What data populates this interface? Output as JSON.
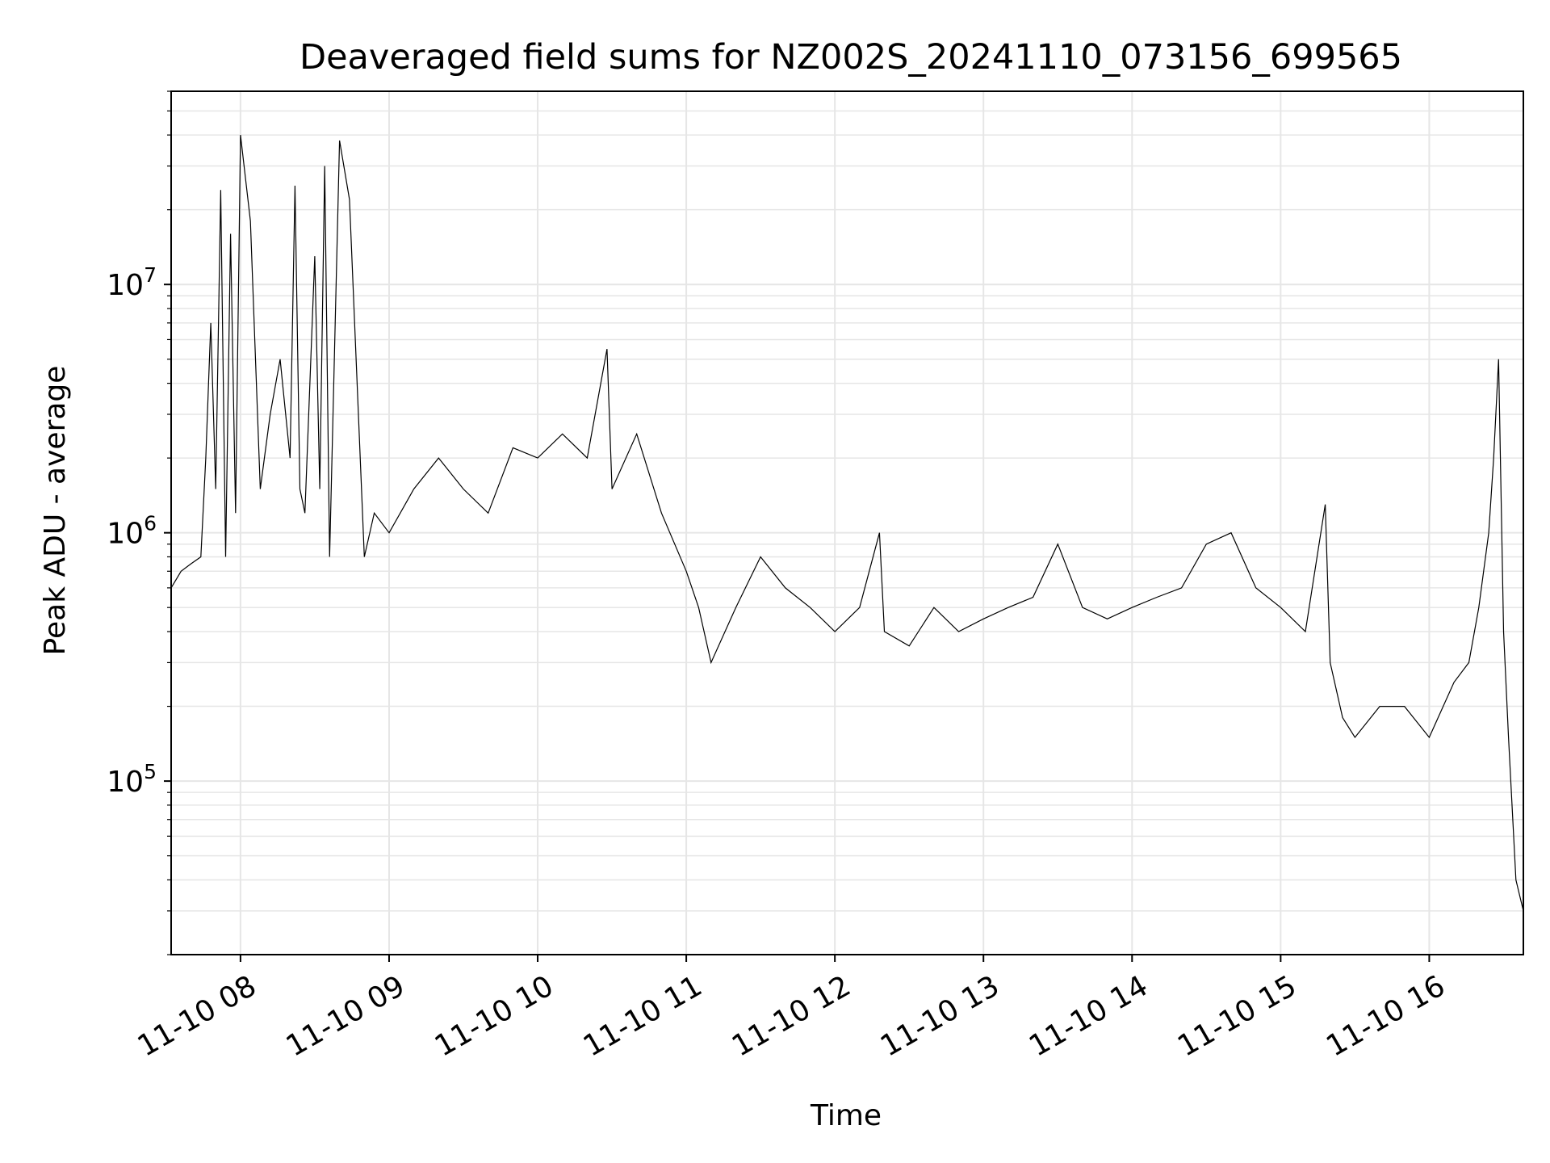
{
  "chart_data": {
    "type": "line",
    "title": "Deaveraged field sums for NZ002S_20241110_073156_699565",
    "xlabel": "Time",
    "ylabel": "Peak ADU - average",
    "yscale": "log",
    "xlim": [
      "2024-11-10T07:32:00",
      "2024-11-10T16:38:00"
    ],
    "ylim": [
      20000,
      60000000
    ],
    "grid": true,
    "line_color": "#000000",
    "grid_color": "#e6e6e6",
    "x_ticks": [
      {
        "value": "2024-11-10T08:00:00",
        "label": "11-10 08"
      },
      {
        "value": "2024-11-10T09:00:00",
        "label": "11-10 09"
      },
      {
        "value": "2024-11-10T10:00:00",
        "label": "11-10 10"
      },
      {
        "value": "2024-11-10T11:00:00",
        "label": "11-10 11"
      },
      {
        "value": "2024-11-10T12:00:00",
        "label": "11-10 12"
      },
      {
        "value": "2024-11-10T13:00:00",
        "label": "11-10 13"
      },
      {
        "value": "2024-11-10T14:00:00",
        "label": "11-10 14"
      },
      {
        "value": "2024-11-10T15:00:00",
        "label": "11-10 15"
      },
      {
        "value": "2024-11-10T16:00:00",
        "label": "11-10 16"
      }
    ],
    "y_ticks": [
      {
        "value": 100000,
        "base": "10",
        "exp": "5"
      },
      {
        "value": 1000000,
        "base": "10",
        "exp": "6"
      },
      {
        "value": 10000000,
        "base": "10",
        "exp": "7"
      }
    ],
    "series": [
      {
        "x": [
          "2024-11-10T07:32:00",
          "2024-11-10T07:36:00",
          "2024-11-10T07:40:00",
          "2024-11-10T07:44:00",
          "2024-11-10T07:46:00",
          "2024-11-10T07:48:00",
          "2024-11-10T07:50:00",
          "2024-11-10T07:52:00",
          "2024-11-10T07:54:00",
          "2024-11-10T07:56:00",
          "2024-11-10T07:58:00",
          "2024-11-10T08:00:00",
          "2024-11-10T08:04:00",
          "2024-11-10T08:08:00",
          "2024-11-10T08:12:00",
          "2024-11-10T08:16:00",
          "2024-11-10T08:20:00",
          "2024-11-10T08:22:00",
          "2024-11-10T08:24:00",
          "2024-11-10T08:26:00",
          "2024-11-10T08:30:00",
          "2024-11-10T08:32:00",
          "2024-11-10T08:34:00",
          "2024-11-10T08:36:00",
          "2024-11-10T08:40:00",
          "2024-11-10T08:44:00",
          "2024-11-10T08:50:00",
          "2024-11-10T08:54:00",
          "2024-11-10T09:00:00",
          "2024-11-10T09:10:00",
          "2024-11-10T09:20:00",
          "2024-11-10T09:30:00",
          "2024-11-10T09:40:00",
          "2024-11-10T09:50:00",
          "2024-11-10T10:00:00",
          "2024-11-10T10:10:00",
          "2024-11-10T10:20:00",
          "2024-11-10T10:28:00",
          "2024-11-10T10:30:00",
          "2024-11-10T10:40:00",
          "2024-11-10T10:50:00",
          "2024-11-10T11:00:00",
          "2024-11-10T11:05:00",
          "2024-11-10T11:10:00",
          "2024-11-10T11:20:00",
          "2024-11-10T11:30:00",
          "2024-11-10T11:40:00",
          "2024-11-10T11:50:00",
          "2024-11-10T12:00:00",
          "2024-11-10T12:10:00",
          "2024-11-10T12:18:00",
          "2024-11-10T12:20:00",
          "2024-11-10T12:30:00",
          "2024-11-10T12:40:00",
          "2024-11-10T12:50:00",
          "2024-11-10T13:00:00",
          "2024-11-10T13:10:00",
          "2024-11-10T13:20:00",
          "2024-11-10T13:30:00",
          "2024-11-10T13:40:00",
          "2024-11-10T13:50:00",
          "2024-11-10T14:00:00",
          "2024-11-10T14:10:00",
          "2024-11-10T14:20:00",
          "2024-11-10T14:30:00",
          "2024-11-10T14:40:00",
          "2024-11-10T14:50:00",
          "2024-11-10T15:00:00",
          "2024-11-10T15:10:00",
          "2024-11-10T15:18:00",
          "2024-11-10T15:20:00",
          "2024-11-10T15:25:00",
          "2024-11-10T15:30:00",
          "2024-11-10T15:40:00",
          "2024-11-10T15:50:00",
          "2024-11-10T16:00:00",
          "2024-11-10T16:10:00",
          "2024-11-10T16:16:00",
          "2024-11-10T16:20:00",
          "2024-11-10T16:24:00",
          "2024-11-10T16:26:00",
          "2024-11-10T16:28:00",
          "2024-11-10T16:30:00",
          "2024-11-10T16:32:00",
          "2024-11-10T16:35:00",
          "2024-11-10T16:38:00"
        ],
        "values": [
          600000,
          700000,
          750000,
          800000,
          2000000,
          7000000,
          1500000,
          24000000,
          800000,
          16000000,
          1200000,
          40000000,
          18000000,
          1500000,
          3000000,
          5000000,
          2000000,
          25000000,
          1500000,
          1200000,
          13000000,
          1500000,
          30000000,
          800000,
          38000000,
          22000000,
          800000,
          1200000,
          1000000,
          1500000,
          2000000,
          1500000,
          1200000,
          2200000,
          2000000,
          2500000,
          2000000,
          5500000,
          1500000,
          2500000,
          1200000,
          700000,
          500000,
          300000,
          500000,
          800000,
          600000,
          500000,
          400000,
          500000,
          1000000,
          400000,
          350000,
          500000,
          400000,
          450000,
          500000,
          550000,
          900000,
          500000,
          450000,
          500000,
          550000,
          600000,
          900000,
          1000000,
          600000,
          500000,
          400000,
          1300000,
          300000,
          180000,
          150000,
          200000,
          200000,
          150000,
          250000,
          300000,
          500000,
          1000000,
          2000000,
          5000000,
          400000,
          150000,
          40000,
          30000
        ]
      }
    ]
  }
}
